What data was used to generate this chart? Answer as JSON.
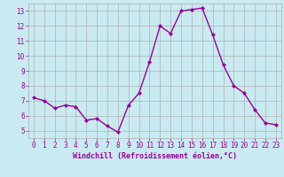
{
  "x": [
    0,
    1,
    2,
    3,
    4,
    5,
    6,
    7,
    8,
    9,
    10,
    11,
    12,
    13,
    14,
    15,
    16,
    17,
    18,
    19,
    20,
    21,
    22,
    23
  ],
  "y": [
    7.2,
    7.0,
    6.5,
    6.7,
    6.6,
    5.7,
    5.8,
    5.3,
    4.9,
    6.7,
    7.5,
    9.6,
    12.0,
    11.5,
    13.0,
    13.1,
    13.2,
    11.4,
    9.4,
    8.0,
    7.5,
    6.4,
    5.5,
    5.4
  ],
  "line_color": "#990099",
  "marker": "D",
  "marker_size": 2,
  "bg_color": "#c8eaf0",
  "grid_color": "#b0b0b0",
  "xlabel": "Windchill (Refroidissement éolien,°C)",
  "xlabel_color": "#990099",
  "tick_color": "#990099",
  "ylim": [
    4.5,
    13.5
  ],
  "xlim": [
    -0.5,
    23.5
  ],
  "yticks": [
    5,
    6,
    7,
    8,
    9,
    10,
    11,
    12,
    13
  ],
  "xticks": [
    0,
    1,
    2,
    3,
    4,
    5,
    6,
    7,
    8,
    9,
    10,
    11,
    12,
    13,
    14,
    15,
    16,
    17,
    18,
    19,
    20,
    21,
    22,
    23
  ],
  "line_width": 1.0,
  "tick_fontsize": 5.5,
  "xlabel_fontsize": 6.0
}
